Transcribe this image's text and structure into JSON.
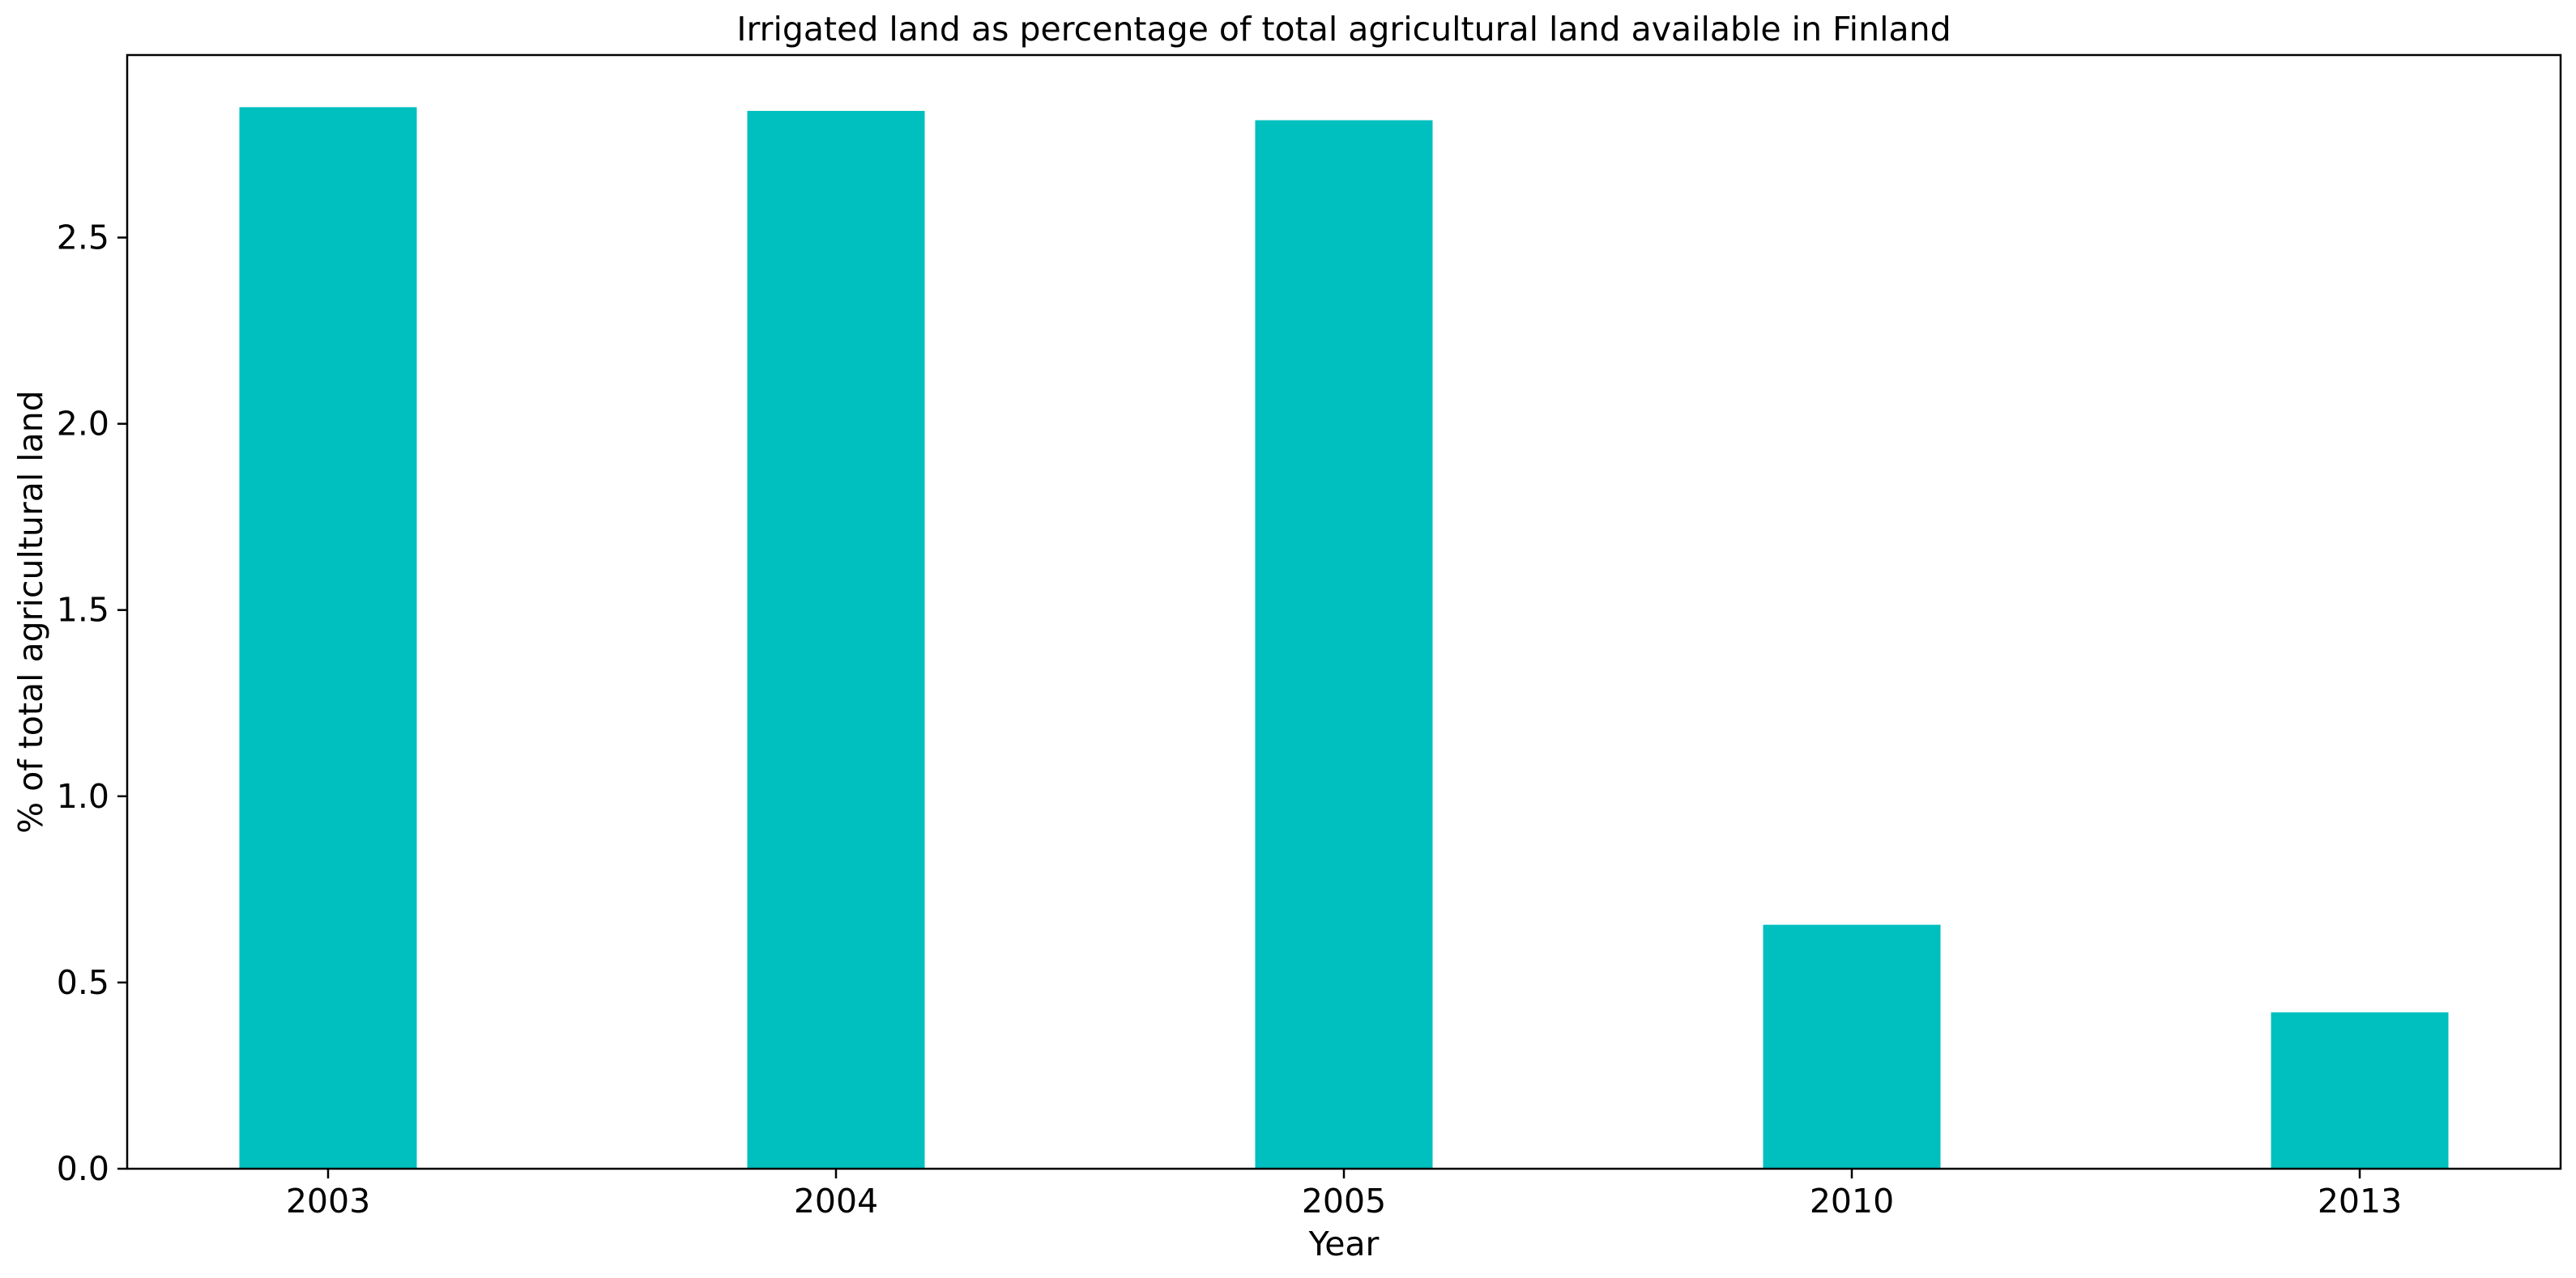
{
  "chart_data": {
    "type": "bar",
    "title": "Irrigated land as percentage of total agricultural land available in Finland",
    "xlabel": "Year",
    "ylabel": "% of total agricultural land",
    "categories": [
      "2003",
      "2004",
      "2005",
      "2010",
      "2013"
    ],
    "values": [
      2.85,
      2.84,
      2.815,
      0.655,
      0.42
    ],
    "ylim": [
      0,
      2.99
    ],
    "yticks": [
      0.0,
      0.5,
      1.0,
      1.5,
      2.0,
      2.5
    ],
    "ytick_labels": [
      "0.0",
      "0.5",
      "1.0",
      "1.5",
      "2.0",
      "2.5"
    ],
    "bar_color": "#00bfbf",
    "grid": false,
    "legend": "none"
  }
}
